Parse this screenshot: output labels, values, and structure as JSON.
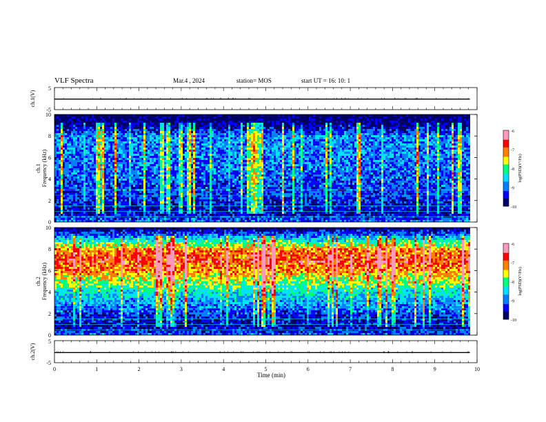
{
  "header": {
    "title": "VLF Spectra",
    "date": "Mar.4 , 2024",
    "station": "station= MOS",
    "start": "start UT =  16: 10: 1"
  },
  "colormap": [
    "#000066",
    "#0000ff",
    "#0080ff",
    "#00e0ff",
    "#00ff80",
    "#ffff00",
    "#ff8000",
    "#ff0000",
    "#ff99bb",
    "#ffffff"
  ],
  "chart_data": [
    {
      "type": "line",
      "panel": "ch1-waveform",
      "ylabel": "ch.1(V)",
      "ylim": [
        -5,
        5
      ],
      "yticks": [
        "5",
        "-5"
      ],
      "x": [
        0,
        9.83
      ],
      "y": [
        -0.2,
        -0.2
      ]
    },
    {
      "type": "heatmap",
      "panel": "ch1-spectrogram",
      "ylabel": "ch.1\nFrequency (kHz)",
      "ylabel_lines": [
        "ch.1",
        "Frequency (kHz)"
      ],
      "ylim": [
        0,
        10
      ],
      "yticks": [
        "0",
        "2",
        "4",
        "6",
        "8",
        "10"
      ],
      "xlim": [
        0,
        10
      ],
      "data_xmax": 9.83,
      "band_profile": {
        "freq_khz": [
          0,
          1,
          2,
          3,
          4,
          5,
          6,
          7,
          8,
          9,
          10
        ],
        "level": [
          -8.8,
          -9.6,
          -9.3,
          -9.2,
          -9.1,
          -9.0,
          -8.9,
          -8.9,
          -8.8,
          -9.6,
          -10.0
        ]
      },
      "colorbar": {
        "label": "log(PSD)(V²/Hz)",
        "min": -10,
        "max": -6,
        "ticks": [
          "-6",
          "-7",
          "-8",
          "-9",
          "-10"
        ]
      }
    },
    {
      "type": "heatmap",
      "panel": "ch2-spectrogram",
      "ylabel": "ch.2\nFrequency (kHz)",
      "ylabel_lines": [
        "ch.2",
        "Frequency (kHz)"
      ],
      "ylim": [
        0,
        10
      ],
      "yticks": [
        "0",
        "2",
        "4",
        "6",
        "8",
        "10"
      ],
      "xlim": [
        0,
        10
      ],
      "data_xmax": 9.83,
      "band_profile": {
        "freq_khz": [
          0,
          1,
          2,
          3,
          4,
          5,
          6,
          7,
          8,
          9,
          10
        ],
        "level": [
          -9.0,
          -9.6,
          -9.2,
          -8.8,
          -8.4,
          -7.8,
          -7.2,
          -6.8,
          -7.1,
          -8.4,
          -9.8
        ]
      },
      "colorbar": {
        "label": "log(PSD)(V²/Hz)",
        "min": -10,
        "max": -6,
        "ticks": [
          "-6",
          "-7",
          "-8",
          "-9",
          "-10"
        ]
      }
    },
    {
      "type": "line",
      "panel": "ch2-waveform",
      "ylabel": "ch.2(V)",
      "ylim": [
        -5,
        5
      ],
      "yticks": [
        "5",
        "-5"
      ],
      "x": [
        0,
        9.83
      ],
      "y": [
        -0.4,
        -0.4
      ]
    }
  ],
  "xaxis": {
    "label": "Time (min)",
    "ticks": [
      "0",
      "1",
      "2",
      "3",
      "4",
      "5",
      "6",
      "7",
      "8",
      "9",
      "10"
    ]
  }
}
